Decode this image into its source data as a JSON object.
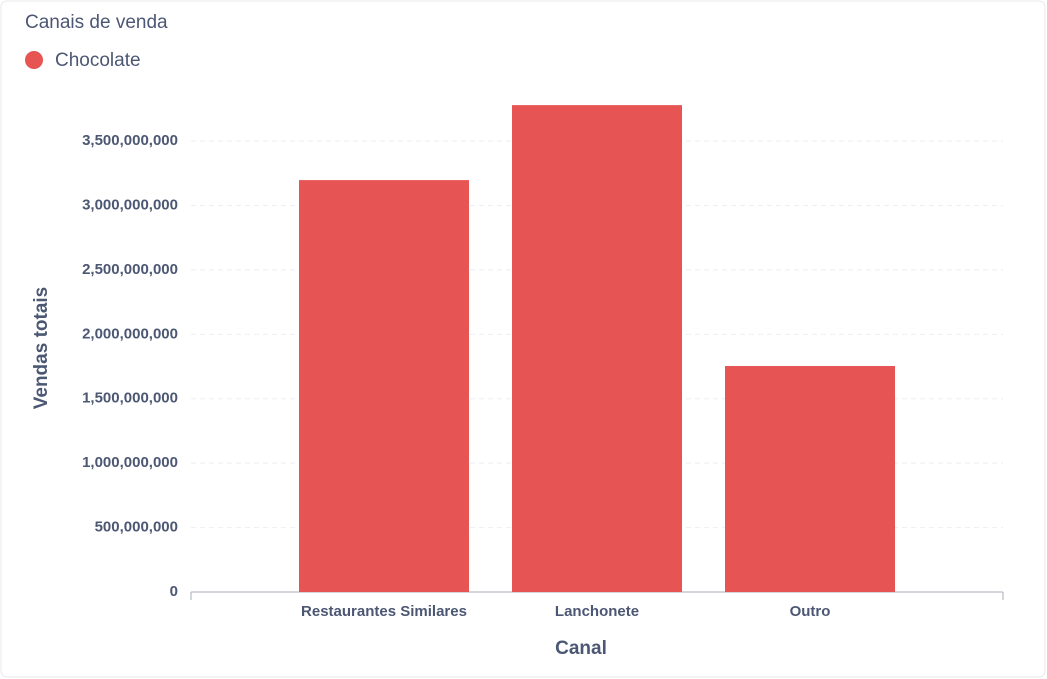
{
  "chart_data": {
    "type": "bar",
    "title": "Canais de venda",
    "x_label": "Canal",
    "y_label": "Vendas totais",
    "categories": [
      "Restaurantes Similares",
      "Lanchonete",
      "Outro"
    ],
    "series": [
      {
        "name": "Chocolate",
        "color": "#e75454",
        "values": [
          3197000000,
          3779000000,
          1754000000
        ]
      }
    ],
    "ylim": [
      0,
      3780000000
    ],
    "yticks": [
      {
        "value": 0,
        "label": "0"
      },
      {
        "value": 500000000,
        "label": "500,000,000"
      },
      {
        "value": 1000000000,
        "label": "1,000,000,000"
      },
      {
        "value": 1500000000,
        "label": "1,500,000,000"
      },
      {
        "value": 2000000000,
        "label": "2,000,000,000"
      },
      {
        "value": 2500000000,
        "label": "2,500,000,000"
      },
      {
        "value": 3000000000,
        "label": "3,000,000,000"
      },
      {
        "value": 3500000000,
        "label": "3,500,000,000"
      }
    ],
    "grid": true,
    "legend": "top-left"
  }
}
